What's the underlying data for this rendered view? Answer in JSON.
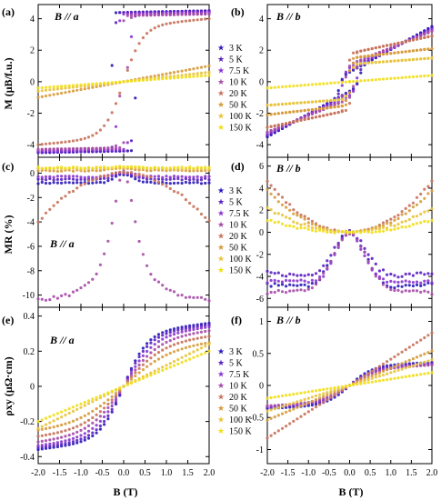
{
  "figure": {
    "xlabel": "B (T)",
    "x_ticks": [
      -2.0,
      -1.5,
      -1.0,
      -0.5,
      0.0,
      0.5,
      1.0,
      1.5,
      2.0
    ],
    "x_tick_labels": [
      "-2.0",
      "-1.5",
      "-1.0",
      "-0.5",
      "0.0",
      "0.5",
      "1.0",
      "1.5",
      "2.0"
    ],
    "legend_entries": [
      "3 K",
      "5 K",
      "7.5 K",
      "10 K",
      "20 K",
      "50 K",
      "100 K",
      "150 K"
    ],
    "colors": {
      "3 K": "#2a18b8",
      "5 K": "#5a21c2",
      "7.5 K": "#8a35cf",
      "10 K": "#a64ba8",
      "20 K": "#c8725a",
      "50 K": "#d79a3a",
      "100 K": "#e8c33a",
      "150 K": "#f1de16"
    },
    "panels": {
      "a": {
        "label": "(a)",
        "annotation": "B // a",
        "ylabel": "M (μB/f.u.)",
        "yticks": [
          4,
          2,
          0,
          -2,
          -4
        ],
        "ylim": [
          -4.8,
          4.9
        ],
        "legend": "right"
      },
      "b": {
        "label": "(b)",
        "annotation": "B // b",
        "ylabel": "",
        "yticks": [
          4,
          2,
          0,
          -2,
          -4
        ],
        "ylim": [
          -4.8,
          4.9
        ],
        "legend": "none"
      },
      "c": {
        "label": "(c)",
        "annotation": "B // a",
        "ylabel": "MR (%)",
        "yticks": [
          0,
          -2,
          -4,
          -6,
          -8,
          -10
        ],
        "ylim": [
          -11,
          1.3
        ],
        "legend": "right"
      },
      "d": {
        "label": "(d)",
        "annotation": "B // b",
        "ylabel": "",
        "yticks": [
          6,
          4,
          2,
          0,
          -2,
          -4,
          -6
        ],
        "ylim": [
          -6.8,
          6.8
        ],
        "legend": "none"
      },
      "e": {
        "label": "(e)",
        "annotation": "B // a",
        "ylabel": "ρxy (μΩ·cm)",
        "yticks": [
          0.4,
          0.2,
          0.0,
          -0.2,
          -0.4
        ],
        "ylim": [
          -0.44,
          0.45
        ],
        "legend": "right"
      },
      "f": {
        "label": "(f)",
        "annotation": "B // b",
        "ylabel": "",
        "yticks": [
          1.0,
          0.5,
          0.0,
          -0.5,
          -1.0
        ],
        "ylim": [
          -1.22,
          1.22
        ],
        "legend": "none"
      }
    }
  },
  "chart_data": [
    {
      "panel": "a",
      "type": "scatter",
      "xlabel": "B (T)",
      "ylabel": "M (μB/f.u.)",
      "xlim": [
        -2.0,
        2.0
      ],
      "ylim": [
        -4.8,
        4.9
      ],
      "hysteresis": true,
      "series": [
        {
          "name": "3 K",
          "kind": "hysteresis",
          "Ms": 4.4,
          "Bc": 0.28,
          "w": 0.03,
          "slope": 0.05
        },
        {
          "name": "5 K",
          "kind": "hysteresis",
          "Ms": 4.4,
          "Bc": 0.22,
          "w": 0.03,
          "slope": 0.05
        },
        {
          "name": "7.5 K",
          "kind": "hysteresis",
          "Ms": 4.3,
          "Bc": 0.15,
          "w": 0.04,
          "slope": 0.05
        },
        {
          "name": "10 K",
          "kind": "hysteresis",
          "Ms": 4.2,
          "Bc": 0.08,
          "w": 0.05,
          "slope": 0.05
        },
        {
          "name": "20 K",
          "kind": "tanh",
          "A": 3.5,
          "w": 0.45,
          "slope": 0.25
        },
        {
          "name": "50 K",
          "kind": "linear",
          "slope": 0.5
        },
        {
          "name": "100 K",
          "kind": "linear",
          "slope": 0.3
        },
        {
          "name": "150 K",
          "kind": "linear",
          "slope": 0.2
        }
      ]
    },
    {
      "panel": "b",
      "type": "scatter",
      "xlabel": "B (T)",
      "ylabel": "",
      "xlim": [
        -2.0,
        2.0
      ],
      "ylim": [
        -4.8,
        4.9
      ],
      "hysteresis": true,
      "series": [
        {
          "name": "3 K",
          "kind": "hysteresis",
          "Ms": 0.6,
          "Bc": 0.25,
          "w": 0.08,
          "slope": 1.45
        },
        {
          "name": "5 K",
          "kind": "hysteresis",
          "Ms": 0.7,
          "Bc": 0.22,
          "w": 0.08,
          "slope": 1.35
        },
        {
          "name": "7.5 K",
          "kind": "hysteresis",
          "Ms": 0.9,
          "Bc": 0.18,
          "w": 0.08,
          "slope": 1.2
        },
        {
          "name": "10 K",
          "kind": "hysteresis",
          "Ms": 1.1,
          "Bc": 0.12,
          "w": 0.08,
          "slope": 1.05
        },
        {
          "name": "20 K",
          "kind": "hysteresis",
          "Ms": 1.8,
          "Bc": 0.06,
          "w": 0.06,
          "slope": 0.55
        },
        {
          "name": "50 K",
          "kind": "hysteresis",
          "Ms": 1.5,
          "Bc": 0.03,
          "w": 0.06,
          "slope": 0.3
        },
        {
          "name": "100 K",
          "kind": "hysteresis",
          "Ms": 1.1,
          "Bc": 0.0,
          "w": 0.08,
          "slope": 0.2
        },
        {
          "name": "150 K",
          "kind": "linear",
          "slope": 0.2
        }
      ]
    },
    {
      "panel": "c",
      "type": "scatter",
      "xlabel": "B (T)",
      "ylabel": "MR (%)",
      "xlim": [
        -2.0,
        2.0
      ],
      "ylim": [
        -11,
        1.3
      ],
      "series": [
        {
          "name": "3 K",
          "kind": "mr_flat",
          "base": -0.8,
          "amp": 0.7,
          "w": 0.3
        },
        {
          "name": "5 K",
          "kind": "mr_flat",
          "base": -0.5,
          "amp": 0.5,
          "w": 0.3
        },
        {
          "name": "7.5 K",
          "kind": "mr_flat",
          "base": -0.3,
          "amp": 0.4,
          "w": 0.3
        },
        {
          "name": "10 K",
          "kind": "mr_lorentz",
          "A": -11.5,
          "w": 0.35
        },
        {
          "name": "20 K",
          "kind": "mr_quad",
          "c": -1.0
        },
        {
          "name": "50 K",
          "kind": "mr_flat",
          "base": 0.2,
          "amp": 0.2,
          "w": 0.5
        },
        {
          "name": "100 K",
          "kind": "mr_flat",
          "base": 0.35,
          "amp": 0.1,
          "w": 0.5
        },
        {
          "name": "150 K",
          "kind": "mr_flat",
          "base": 0.45,
          "amp": 0.05,
          "w": 0.5
        }
      ]
    },
    {
      "panel": "d",
      "type": "scatter",
      "xlabel": "B (T)",
      "ylabel": "",
      "xlim": [
        -2.0,
        2.0
      ],
      "ylim": [
        -6.8,
        6.8
      ],
      "series": [
        {
          "name": "3 K",
          "kind": "mr_dip",
          "depth": 5.3,
          "w": 0.55,
          "slope": 0.28
        },
        {
          "name": "5 K",
          "kind": "mr_dip",
          "depth": 4.3,
          "w": 0.55,
          "slope": 0.3
        },
        {
          "name": "7.5 K",
          "kind": "mr_dip",
          "depth": 4.5,
          "w": 0.45,
          "slope": 0.0
        },
        {
          "name": "10 K",
          "kind": "mr_dip",
          "depth": 5.0,
          "w": 0.55,
          "slope": -0.25
        },
        {
          "name": "20 K",
          "kind": "mr_quad",
          "c": 1.15
        },
        {
          "name": "50 K",
          "kind": "mr_quad",
          "c": 0.95
        },
        {
          "name": "100 K",
          "kind": "mr_quad",
          "c": 0.55
        },
        {
          "name": "150 K",
          "kind": "mr_quad",
          "c": 0.28
        }
      ]
    },
    {
      "panel": "e",
      "type": "scatter",
      "xlabel": "B (T)",
      "ylabel": "ρxy (μΩ·cm)",
      "xlim": [
        -2.0,
        2.0
      ],
      "ylim": [
        -0.44,
        0.45
      ],
      "series": [
        {
          "name": "3 K",
          "kind": "tanh",
          "A": 0.3,
          "w": 0.55,
          "slope": 0.03
        },
        {
          "name": "5 K",
          "kind": "tanh",
          "A": 0.29,
          "w": 0.6,
          "slope": 0.03
        },
        {
          "name": "7.5 K",
          "kind": "tanh",
          "A": 0.28,
          "w": 0.7,
          "slope": 0.03
        },
        {
          "name": "10 K",
          "kind": "tanh",
          "A": 0.26,
          "w": 0.8,
          "slope": 0.03
        },
        {
          "name": "20 K",
          "kind": "tanh",
          "A": 0.24,
          "w": 0.9,
          "slope": 0.025
        },
        {
          "name": "50 K",
          "kind": "tanh",
          "A": 0.22,
          "w": 1.1,
          "slope": 0.02
        },
        {
          "name": "100 K",
          "kind": "linear",
          "slope": 0.12
        },
        {
          "name": "150 K",
          "kind": "linear",
          "slope": 0.1
        }
      ]
    },
    {
      "panel": "f",
      "type": "scatter",
      "xlabel": "B (T)",
      "ylabel": "",
      "xlim": [
        -2.0,
        2.0
      ],
      "ylim": [
        -1.22,
        1.22
      ],
      "series": [
        {
          "name": "3 K",
          "kind": "tanh",
          "A": 0.3,
          "w": 0.55,
          "slope": 0.03
        },
        {
          "name": "5 K",
          "kind": "tanh",
          "A": 0.28,
          "w": 0.6,
          "slope": 0.03
        },
        {
          "name": "7.5 K",
          "kind": "tanh",
          "A": 0.27,
          "w": 0.65,
          "slope": 0.03
        },
        {
          "name": "10 K",
          "kind": "tanh",
          "A": 0.26,
          "w": 0.7,
          "slope": 0.03
        },
        {
          "name": "20 K",
          "kind": "linear",
          "slope": 0.41
        },
        {
          "name": "50 K",
          "kind": "linear",
          "slope": 0.27
        },
        {
          "name": "100 K",
          "kind": "linear",
          "slope": 0.2
        },
        {
          "name": "150 K",
          "kind": "linear",
          "slope": 0.1
        }
      ]
    }
  ]
}
